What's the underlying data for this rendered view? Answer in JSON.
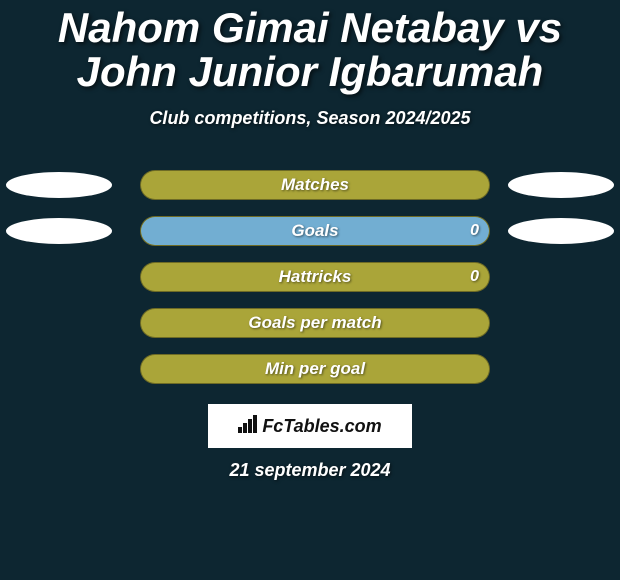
{
  "background_color": "#0d2631",
  "title": {
    "text": "Nahom Gimai Netabay vs John Junior Igbarumah",
    "color": "#ffffff",
    "fontsize": 42
  },
  "subtitle": {
    "text": "Club competitions, Season 2024/2025",
    "color": "#ffffff",
    "fontsize": 18
  },
  "oval_color": "#ffffff",
  "bar_base_color": "#aaa539",
  "bar_highlight_color": "#72aed2",
  "bar_label_color": "#ffffff",
  "bar_label_fontsize": 17,
  "bar_value_color": "#ffffff",
  "bar_value_fontsize": 16,
  "bars": [
    {
      "label": "Matches",
      "value_right": "",
      "fill_pct": 0,
      "fill_color": "#72aed2",
      "show_left_oval": true,
      "show_right_oval": true
    },
    {
      "label": "Goals",
      "value_right": "0",
      "fill_pct": 100,
      "fill_color": "#72aed2",
      "show_left_oval": true,
      "show_right_oval": true
    },
    {
      "label": "Hattricks",
      "value_right": "0",
      "fill_pct": 0,
      "fill_color": "#72aed2",
      "show_left_oval": false,
      "show_right_oval": false
    },
    {
      "label": "Goals per match",
      "value_right": "",
      "fill_pct": 0,
      "fill_color": "#72aed2",
      "show_left_oval": false,
      "show_right_oval": false
    },
    {
      "label": "Min per goal",
      "value_right": "",
      "fill_pct": 0,
      "fill_color": "#72aed2",
      "show_left_oval": false,
      "show_right_oval": false
    }
  ],
  "logo": {
    "background": "#ffffff",
    "text": "FcTables.com",
    "text_color": "#111111",
    "fontsize": 18
  },
  "date": {
    "text": "21 september 2024",
    "color": "#ffffff",
    "fontsize": 18
  }
}
